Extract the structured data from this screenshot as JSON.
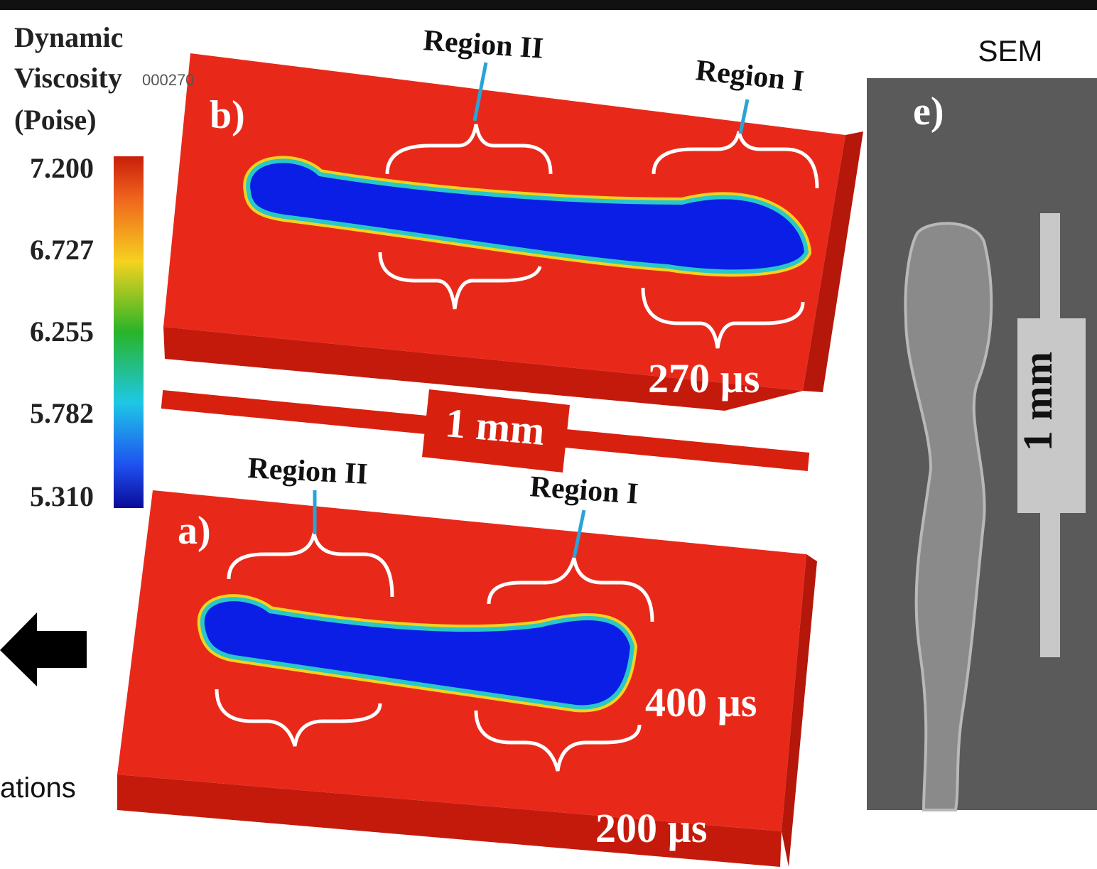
{
  "legend": {
    "title_lines": [
      "Dynamic",
      "Viscosity",
      "(Poise)"
    ],
    "ticks": [
      "7.200",
      "6.727",
      "6.255",
      "5.782",
      "5.310"
    ]
  },
  "panel_b": {
    "label": "b)",
    "region_left": "Region II",
    "region_right": "Region I",
    "time": "270 µs",
    "overlay": "000270"
  },
  "scale_bar": "1 mm",
  "panel_a": {
    "label": "a)",
    "region_left": "Region II",
    "region_right": "Region I",
    "time_top": "400 µs",
    "time_bottom": "200 µs"
  },
  "sem": {
    "title": "SEM",
    "label": "e)",
    "scale_bar": "1 mm"
  },
  "side_caption": "ations"
}
